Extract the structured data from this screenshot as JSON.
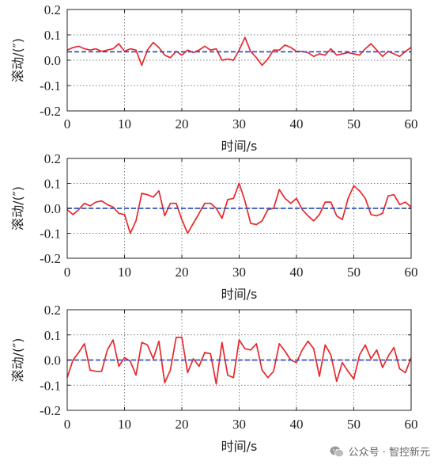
{
  "chart_data": [
    {
      "type": "line",
      "xlabel": "时间/s",
      "ylabel": "滚动/(″)",
      "xlim": [
        0,
        60
      ],
      "ylim": [
        -0.2,
        0.2
      ],
      "xticks": [
        "0",
        "10",
        "20",
        "30",
        "40",
        "50",
        "60"
      ],
      "yticks": [
        "0.2",
        "0.1",
        "0.0",
        "-0.1",
        "-0.2"
      ],
      "grid": true,
      "series": [
        {
          "color": "#e8282b",
          "style": "solid",
          "x": [
            0,
            1,
            2,
            3,
            4,
            5,
            6,
            7,
            8,
            9,
            10,
            11,
            12,
            13,
            14,
            15,
            16,
            17,
            18,
            19,
            20,
            21,
            22,
            23,
            24,
            25,
            26,
            27,
            28,
            29,
            30,
            31,
            32,
            33,
            34,
            35,
            36,
            37,
            38,
            39,
            40,
            41,
            42,
            43,
            44,
            45,
            46,
            47,
            48,
            49,
            50,
            51,
            52,
            53,
            54,
            55,
            56,
            57,
            58,
            59,
            60
          ],
          "y": [
            0.04,
            0.05,
            0.055,
            0.045,
            0.04,
            0.045,
            0.035,
            0.04,
            0.045,
            0.065,
            0.035,
            0.045,
            0.04,
            -0.02,
            0.04,
            0.07,
            0.05,
            0.02,
            0.01,
            0.035,
            0.02,
            0.04,
            0.03,
            0.04,
            0.055,
            0.04,
            0.045,
            0.0,
            0.005,
            0.0,
            0.04,
            0.09,
            0.035,
            0.01,
            -0.02,
            0.005,
            0.04,
            0.04,
            0.06,
            0.05,
            0.035,
            0.035,
            0.03,
            0.015,
            0.025,
            0.02,
            0.045,
            0.02,
            0.025,
            0.03,
            0.025,
            0.02,
            0.045,
            0.065,
            0.04,
            0.015,
            0.035,
            0.025,
            0.015,
            0.035,
            0.05
          ]
        },
        {
          "color": "#3355bb",
          "style": "dashed",
          "x": [
            0,
            60
          ],
          "y": [
            0.033,
            0.033
          ]
        }
      ]
    },
    {
      "type": "line",
      "xlabel": "时间/s",
      "ylabel": "滚动/(″)",
      "xlim": [
        0,
        60
      ],
      "ylim": [
        -0.2,
        0.2
      ],
      "xticks": [
        "0",
        "10",
        "20",
        "30",
        "40",
        "50",
        "60"
      ],
      "yticks": [
        "0.2",
        "0.1",
        "0.0",
        "-0.1",
        "-0.2"
      ],
      "grid": true,
      "series": [
        {
          "color": "#e8282b",
          "style": "solid",
          "x": [
            0,
            1,
            2,
            3,
            4,
            5,
            6,
            7,
            8,
            9,
            10,
            11,
            12,
            13,
            14,
            15,
            16,
            17,
            18,
            19,
            20,
            21,
            22,
            23,
            24,
            25,
            26,
            27,
            28,
            29,
            30,
            31,
            32,
            33,
            34,
            35,
            36,
            37,
            38,
            39,
            40,
            41,
            42,
            43,
            44,
            45,
            46,
            47,
            48,
            49,
            50,
            51,
            52,
            53,
            54,
            55,
            56,
            57,
            58,
            59,
            60
          ],
          "y": [
            -0.005,
            -0.025,
            -0.005,
            0.02,
            0.01,
            0.025,
            0.03,
            0.015,
            0.005,
            -0.02,
            -0.025,
            -0.1,
            -0.05,
            0.06,
            0.055,
            0.045,
            0.07,
            -0.03,
            0.02,
            0.02,
            -0.045,
            -0.1,
            -0.06,
            -0.02,
            0.02,
            0.02,
            0.0,
            -0.04,
            0.035,
            0.04,
            0.1,
            0.03,
            -0.06,
            -0.065,
            -0.05,
            -0.005,
            0.0,
            0.075,
            0.04,
            0.02,
            0.04,
            -0.005,
            -0.03,
            -0.05,
            -0.025,
            0.025,
            0.025,
            -0.03,
            -0.045,
            0.04,
            0.09,
            0.07,
            0.04,
            -0.025,
            -0.03,
            -0.02,
            0.05,
            0.055,
            0.015,
            0.025,
            0.005
          ]
        },
        {
          "color": "#3355bb",
          "style": "dashed",
          "x": [
            0,
            60
          ],
          "y": [
            0.0,
            0.0
          ]
        }
      ]
    },
    {
      "type": "line",
      "xlabel": "时间/s",
      "ylabel": "滚动/(″)",
      "xlim": [
        0,
        60
      ],
      "ylim": [
        -0.2,
        0.2
      ],
      "xticks": [
        "0",
        "10",
        "20",
        "30",
        "40",
        "50",
        "60"
      ],
      "yticks": [
        "0.2",
        "0.1",
        "0.0",
        "-0.1",
        "-0.2"
      ],
      "grid": true,
      "series": [
        {
          "color": "#e8282b",
          "style": "solid",
          "x": [
            0,
            1,
            2,
            3,
            4,
            5,
            6,
            7,
            8,
            9,
            10,
            11,
            12,
            13,
            14,
            15,
            16,
            17,
            18,
            19,
            20,
            21,
            22,
            23,
            24,
            25,
            26,
            27,
            28,
            29,
            30,
            31,
            32,
            33,
            34,
            35,
            36,
            37,
            38,
            39,
            40,
            41,
            42,
            43,
            44,
            45,
            46,
            47,
            48,
            49,
            50,
            51,
            52,
            53,
            54,
            55,
            56,
            57,
            58,
            59,
            60
          ],
          "y": [
            -0.07,
            0.0,
            0.03,
            0.065,
            -0.04,
            -0.045,
            -0.045,
            0.04,
            0.08,
            -0.025,
            0.01,
            -0.005,
            -0.06,
            0.07,
            0.06,
            0.005,
            0.075,
            -0.09,
            -0.04,
            0.09,
            0.09,
            -0.05,
            0.005,
            -0.025,
            0.03,
            0.025,
            -0.095,
            0.07,
            -0.06,
            -0.07,
            0.08,
            0.045,
            0.04,
            0.065,
            -0.04,
            -0.07,
            -0.045,
            0.065,
            0.035,
            0.0,
            -0.01,
            0.04,
            0.075,
            0.045,
            -0.065,
            0.06,
            0.02,
            -0.085,
            -0.01,
            -0.045,
            -0.075,
            0.02,
            0.06,
            0.005,
            0.04,
            -0.03,
            0.015,
            0.05,
            -0.035,
            -0.05,
            0.01
          ]
        },
        {
          "color": "#3355bb",
          "style": "dashed",
          "x": [
            0,
            60
          ],
          "y": [
            0.0,
            0.0
          ]
        }
      ]
    }
  ],
  "watermark": {
    "icon": "wechat-icon",
    "text": "公众号 · 智控新元"
  }
}
